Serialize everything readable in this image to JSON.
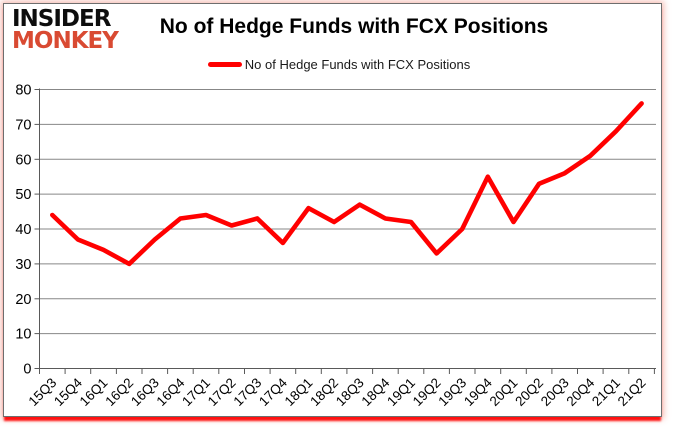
{
  "brand": {
    "line1": "INSIDER",
    "line2": "MONKEY",
    "accent_color": "#d94a32"
  },
  "header": {
    "title": "No of Hedge Funds with FCX Positions"
  },
  "legend": {
    "label": "No of Hedge Funds with FCX Positions",
    "line_color": "#ff0000"
  },
  "chart_data": {
    "type": "line",
    "title": "No of Hedge Funds with FCX Positions",
    "categories": [
      "15Q3",
      "15Q4",
      "16Q1",
      "16Q2",
      "16Q3",
      "16Q4",
      "17Q1",
      "17Q2",
      "17Q3",
      "17Q4",
      "18Q1",
      "18Q2",
      "18Q3",
      "18Q4",
      "19Q1",
      "19Q2",
      "19Q3",
      "19Q4",
      "20Q1",
      "20Q2",
      "20Q3",
      "20Q4",
      "21Q1",
      "21Q2"
    ],
    "series": [
      {
        "name": "No of Hedge Funds with FCX Positions",
        "color": "#ff0000",
        "values": [
          44,
          37,
          34,
          30,
          37,
          43,
          44,
          41,
          43,
          36,
          46,
          42,
          47,
          43,
          42,
          33,
          40,
          55,
          42,
          53,
          56,
          61,
          68,
          76
        ]
      }
    ],
    "ylim": [
      0,
      80
    ],
    "yticks": [
      0,
      10,
      20,
      30,
      40,
      50,
      60,
      70,
      80
    ],
    "grid": "horizontal-gridlines-on",
    "gridline_color": "#878787",
    "axis_color": "#595959",
    "tick_label_color": "#000000",
    "legend_position": "top-center",
    "x_label_rotation_deg": -45
  }
}
